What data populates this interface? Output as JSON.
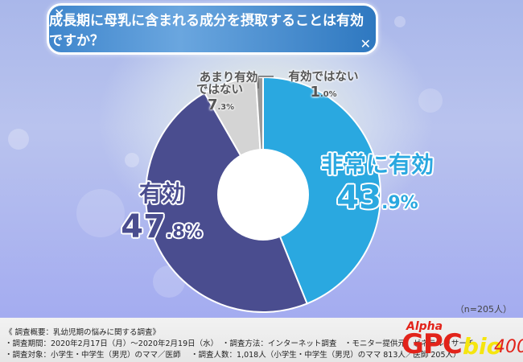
{
  "title": "成長期に母乳に含まれる成分を摂取することは有効ですか？",
  "chart_data": {
    "type": "pie",
    "title": "成長期に母乳に含まれる成分を摂取することは有効ですか？",
    "donut": true,
    "start_angle": "12 o'clock",
    "direction": "clockwise",
    "categories": [
      "非常に有効",
      "有効",
      "あまり有効ではない",
      "有効ではない"
    ],
    "values": [
      43.9,
      47.8,
      7.3,
      1.0
    ],
    "colors": [
      "#2aa8e0",
      "#4a4d8f",
      "#d4d4d4",
      "#9a9a9a"
    ],
    "unit": "%",
    "sample_size": "n=205人"
  },
  "labels": {
    "very_effective": {
      "name": "非常に有効",
      "pct_int": "43",
      "pct_dec": ".9%"
    },
    "effective": {
      "name": "有効",
      "pct_int": "47",
      "pct_dec": ".8%"
    },
    "not_very": {
      "name_line1": "あまり有効",
      "name_line2": "ではない",
      "pct_int": "7",
      "pct_dec": ".3%"
    },
    "not_effective": {
      "name": "有効ではない",
      "pct_int": "1",
      "pct_dec": ".0%"
    }
  },
  "sample_note": "（n=205人）",
  "footer": {
    "line1": "《 調査概要：乳幼児期の悩みに関する調査》",
    "line2": "・調査期間：2020年2月17日（月）～2020年2月19日（水）　・調査方法：インターネット調査　・モニター提供元：ゼネラルリサーチ",
    "line3": "・調査対象：小学生・中学生（男児）のママ／医師　 ・調査人数：1,018人（小学生・中学生（男児）のママ 813人／医師 205人）"
  },
  "logo": {
    "alpha": "Alpha",
    "gpc": "GPC",
    "bio": "bio",
    "num": "400"
  }
}
